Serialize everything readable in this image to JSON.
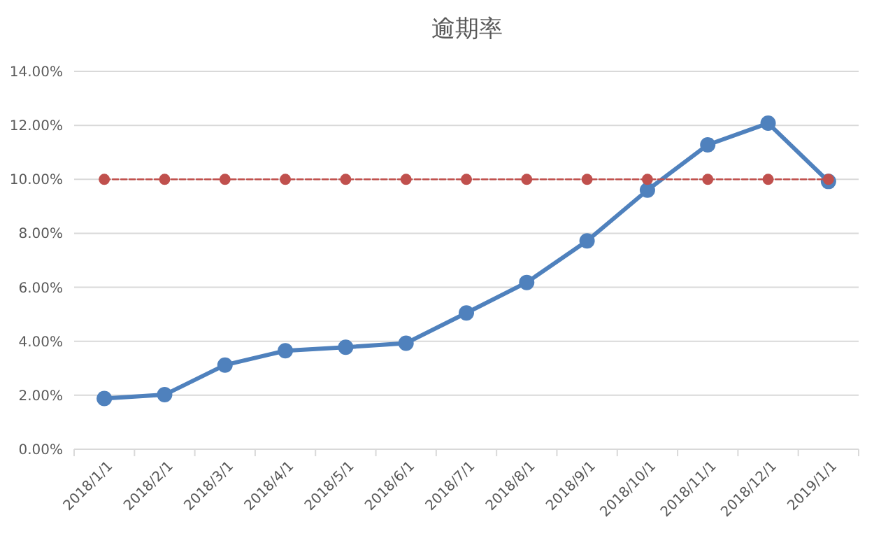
{
  "chart_data": {
    "type": "line",
    "title": "逾期率",
    "categories": [
      "2018/1/1",
      "2018/2/1",
      "2018/3/1",
      "2018/4/1",
      "2018/5/1",
      "2018/6/1",
      "2018/7/1",
      "2018/8/1",
      "2018/9/1",
      "2018/10/1",
      "2018/11/1",
      "2018/12/1",
      "2019/1/1"
    ],
    "series": [
      {
        "color": "#4f81bd",
        "line_style": "solid",
        "values": [
          1.88,
          2.02,
          3.12,
          3.65,
          3.78,
          3.93,
          5.05,
          6.18,
          7.72,
          9.6,
          11.28,
          12.08,
          9.92
        ]
      },
      {
        "color": "#c0504d",
        "line_style": "dashed",
        "values": [
          10,
          10,
          10,
          10,
          10,
          10,
          10,
          10,
          10,
          10,
          10,
          10,
          10
        ]
      }
    ],
    "ylim": [
      0,
      14
    ],
    "yticks": [
      {
        "value": 0,
        "label": "0.00%"
      },
      {
        "value": 2,
        "label": "2.00%"
      },
      {
        "value": 4,
        "label": "4.00%"
      },
      {
        "value": 6,
        "label": "6.00%"
      },
      {
        "value": 8,
        "label": "8.00%"
      },
      {
        "value": 10,
        "label": "10.00%"
      },
      {
        "value": 12,
        "label": "12.00%"
      },
      {
        "value": 14,
        "label": "14.00%"
      }
    ],
    "grid": "y",
    "marker": "circle"
  }
}
